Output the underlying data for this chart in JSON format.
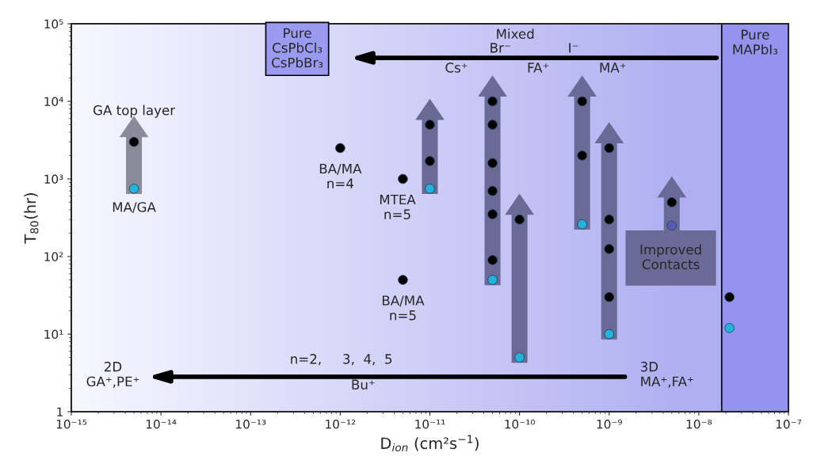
{
  "chart_data": {
    "type": "scatter",
    "log": "xy",
    "xlabel": "D$_{ion}$ (cm²s$^{−1}$)",
    "ylabel": "T$_{80}$(hr)",
    "xlim": [
      1e-15,
      1e-07
    ],
    "ylim": [
      1,
      100000
    ],
    "xticks": [
      {
        "value": 1e-15,
        "label": "10⁻¹⁵"
      },
      {
        "value": 1e-14,
        "label": "10⁻¹⁴"
      },
      {
        "value": 1e-13,
        "label": "10⁻¹³"
      },
      {
        "value": 1e-12,
        "label": "10⁻¹²"
      },
      {
        "value": 1e-11,
        "label": "10⁻¹¹"
      },
      {
        "value": 1e-10,
        "label": "10⁻¹⁰"
      },
      {
        "value": 1e-09,
        "label": "10⁻⁹"
      },
      {
        "value": 1e-08,
        "label": "10⁻⁸"
      },
      {
        "value": 1e-07,
        "label": "10⁻⁷"
      }
    ],
    "yticks": [
      1,
      {
        "value": 10,
        "label": "10¹"
      },
      {
        "value": 100,
        "label": "10²"
      },
      {
        "value": 1000,
        "label": "10³"
      },
      {
        "value": 10000,
        "label": "10⁴"
      },
      {
        "value": 100000,
        "label": "10⁵"
      }
    ],
    "grid": false,
    "legend": false,
    "marker": "circle",
    "series": [
      {
        "x": [
          1e-12,
          5e-12,
          5e-12,
          2.2e-08,
          2.2e-08
        ],
        "values": [
          2500,
          1000,
          50,
          30,
          12
        ],
        "colors": [
          "#000000",
          "#000000",
          "#000000",
          "#000000",
          "#22b4dc"
        ]
      },
      {
        "x": [
          5e-15,
          5e-15
        ],
        "values": [
          3000,
          750
        ],
        "colors": [
          "#000000",
          "#22b4dc"
        ]
      },
      {
        "x": [
          1e-11,
          1e-11,
          1e-11
        ],
        "values": [
          5000,
          1700,
          750
        ],
        "colors": [
          "#000000",
          "#000000",
          "#22b4dc"
        ]
      },
      {
        "x": [
          5e-11,
          5e-11,
          5e-11,
          5e-11,
          5e-11,
          5e-11,
          5e-11
        ],
        "values": [
          10000,
          5000,
          1600,
          700,
          350,
          90,
          50
        ],
        "colors": [
          "#000000",
          "#000000",
          "#000000",
          "#000000",
          "#000000",
          "#000000",
          "#22b4dc"
        ]
      },
      {
        "x": [
          1e-10,
          1e-10
        ],
        "values": [
          300,
          5
        ],
        "colors": [
          "#000000",
          "#22b4dc"
        ]
      },
      {
        "x": [
          5e-10,
          5e-10,
          5e-10
        ],
        "values": [
          10000,
          2000,
          260
        ],
        "colors": [
          "#000000",
          "#000000",
          "#22b4dc"
        ]
      },
      {
        "x": [
          1e-09,
          1e-09,
          1e-09,
          1e-09,
          1e-09
        ],
        "values": [
          2500,
          300,
          125,
          30,
          10
        ],
        "colors": [
          "#000000",
          "#000000",
          "#000000",
          "#000000",
          "#22b4dc"
        ]
      },
      {
        "x": [
          5e-09,
          5e-09
        ],
        "values": [
          500,
          250
        ],
        "colors": [
          "#000000",
          "#5a5ab4"
        ]
      }
    ],
    "bands": [
      {
        "axis": "x",
        "from": 1.8e-08,
        "to": 1e-07,
        "label": "Pure\nMAPbI₃",
        "color": "#9494ee"
      }
    ],
    "annotations": [
      {
        "text": "GA top layer",
        "x": 5e-15,
        "y": 3000
      },
      {
        "text": "MA/GA",
        "x": 5e-15,
        "y": 750
      },
      {
        "text": "BA/MA\nn=4",
        "x": 1e-12,
        "y": 2500
      },
      {
        "text": "MTEA\nn=5",
        "x": 5e-12,
        "y": 1000
      },
      {
        "text": "BA/MA\nn=5",
        "x": 5e-12,
        "y": 50
      },
      "Pure\nCsPbCl₃\nCsPbBr₃",
      "Mixed",
      "Br⁻",
      "I⁻",
      "Cs⁺",
      "FA⁺",
      "MA⁺",
      "Improved\nContacts",
      "n=2,",
      "3,  4,  5",
      "Bu⁺",
      "2D\nGA⁺,PE⁺",
      "3D\nMA⁺,FA⁺"
    ]
  }
}
